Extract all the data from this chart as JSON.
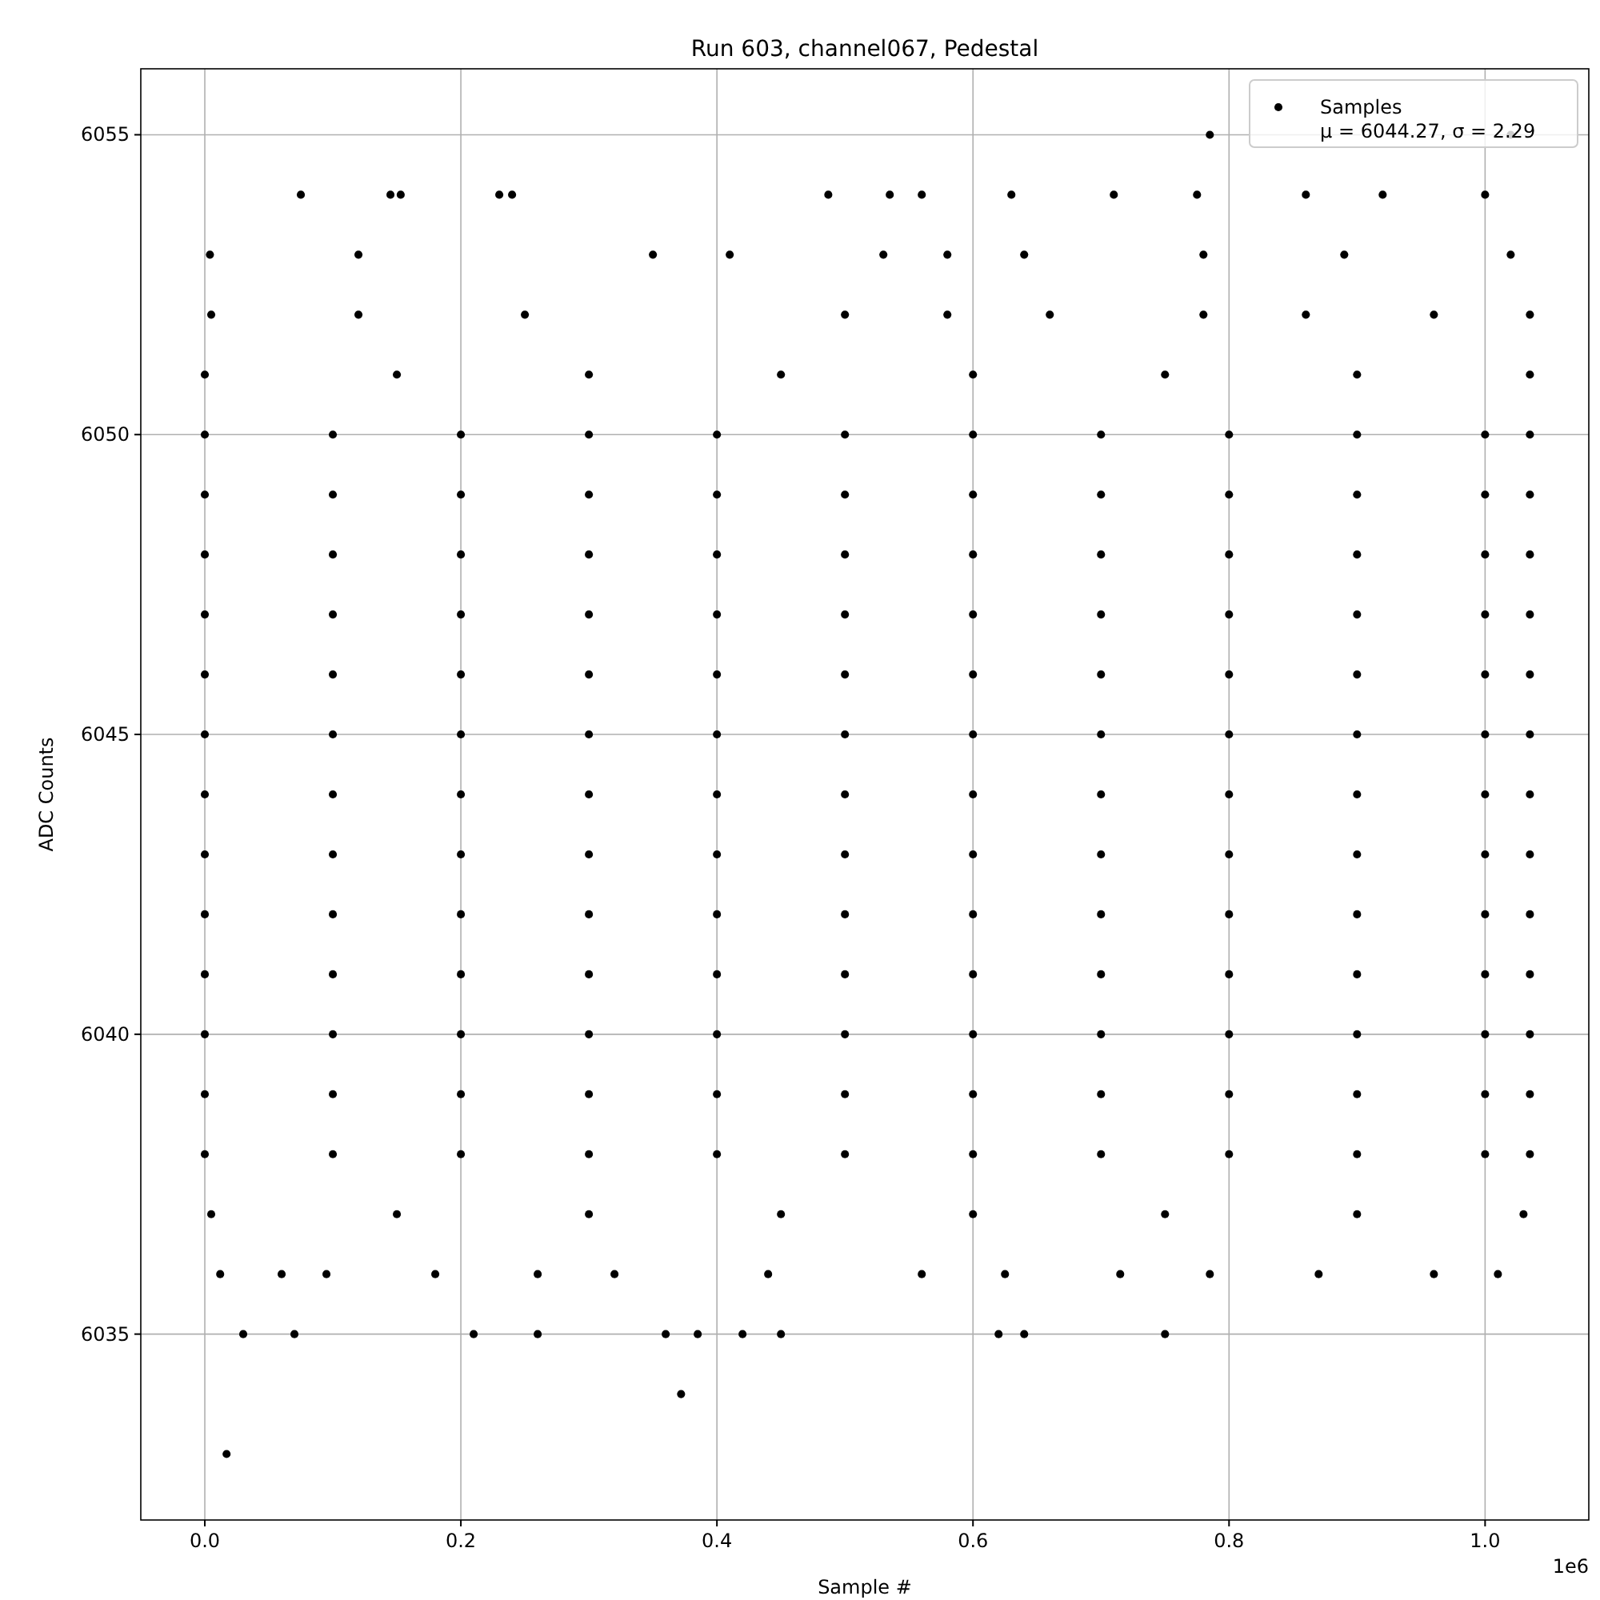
{
  "chart_data": {
    "type": "scatter",
    "title": "Run 603, channel067, Pedestal",
    "xlabel": "Sample #",
    "ylabel": "ADC Counts",
    "xlim": [
      -0.05,
      1.081
    ],
    "ylim": [
      6031.9,
      6056.1
    ],
    "xticks": [
      {
        "value": 0,
        "label": "0.0"
      },
      0.2,
      0.4,
      0.6,
      0.8,
      {
        "value": 1,
        "label": "1.0"
      }
    ],
    "yticks": [
      6035,
      6040,
      6045,
      6050,
      6055
    ],
    "grid": true,
    "legend": "top right",
    "marker": "circle",
    "annotations": [
      "1e6"
    ],
    "series": [
      {
        "name": "Samples\nμ = 6044.27, σ = 2.29",
        "color": "#000000",
        "x": [
          0,
          0.1,
          0.2,
          0.3,
          0.4,
          0.5,
          0.6,
          0.7,
          0.8,
          0.9,
          1,
          1.035,
          0,
          0.1,
          0.2,
          0.3,
          0.4,
          0.5,
          0.6,
          0.7,
          0.8,
          0.9,
          1,
          1.035,
          0,
          0.1,
          0.2,
          0.3,
          0.4,
          0.5,
          0.6,
          0.7,
          0.8,
          0.9,
          1,
          1.035,
          0,
          0.1,
          0.2,
          0.3,
          0.4,
          0.5,
          0.6,
          0.7,
          0.8,
          0.9,
          1,
          1.035,
          0,
          0.1,
          0.2,
          0.3,
          0.4,
          0.5,
          0.6,
          0.7,
          0.8,
          0.9,
          1,
          1.035,
          0,
          0.1,
          0.2,
          0.3,
          0.4,
          0.5,
          0.6,
          0.7,
          0.8,
          0.9,
          1,
          1.035,
          0,
          0.1,
          0.2,
          0.3,
          0.4,
          0.5,
          0.6,
          0.7,
          0.8,
          0.9,
          1,
          1.035,
          0,
          0.1,
          0.2,
          0.3,
          0.4,
          0.5,
          0.6,
          0.7,
          0.8,
          0.9,
          1,
          1.035,
          0,
          0.1,
          0.2,
          0.3,
          0.4,
          0.5,
          0.6,
          0.7,
          0.8,
          0.9,
          1,
          1.035,
          0,
          0.1,
          0.2,
          0.3,
          0.4,
          0.5,
          0.6,
          0.7,
          0.8,
          0.9,
          1,
          1.035,
          0,
          0.1,
          0.2,
          0.3,
          0.4,
          0.5,
          0.6,
          0.7,
          0.8,
          0.9,
          1,
          1.035,
          0,
          0.1,
          0.2,
          0.3,
          0.4,
          0.5,
          0.6,
          0.7,
          0.8,
          0.9,
          1,
          1.035,
          0,
          0.1,
          0.2,
          0.3,
          0.4,
          0.5,
          0.6,
          0.7,
          0.8,
          0.9,
          1,
          1.035,
          0,
          0.15,
          0.3,
          0.45,
          0.6,
          0.75,
          0.9,
          1.035,
          0.005,
          0.15,
          0.3,
          0.45,
          0.6,
          0.75,
          0.9,
          1.03,
          0.005,
          0.12,
          0.25,
          0.5,
          0.58,
          0.66,
          0.78,
          0.86,
          0.96,
          1.035,
          0.004,
          0.12,
          0.35,
          0.41,
          0.53,
          0.58,
          0.64,
          0.78,
          0.89,
          1.02,
          0.075,
          0.145,
          0.153,
          0.23,
          0.24,
          0.487,
          0.535,
          0.56,
          0.63,
          0.71,
          0.775,
          0.86,
          0.92,
          1,
          0.785,
          1.02,
          0.012,
          0.06,
          0.095,
          0.18,
          0.26,
          0.32,
          0.44,
          0.56,
          0.625,
          0.715,
          0.785,
          0.87,
          0.96,
          1.01,
          0.03,
          0.07,
          0.21,
          0.26,
          0.36,
          0.385,
          0.42,
          0.45,
          0.62,
          0.64,
          0.75,
          0.372,
          0.017
        ],
        "values": [
          6038,
          6038,
          6038,
          6038,
          6038,
          6038,
          6038,
          6038,
          6038,
          6038,
          6038,
          6038,
          6039,
          6039,
          6039,
          6039,
          6039,
          6039,
          6039,
          6039,
          6039,
          6039,
          6039,
          6039,
          6040,
          6040,
          6040,
          6040,
          6040,
          6040,
          6040,
          6040,
          6040,
          6040,
          6040,
          6040,
          6041,
          6041,
          6041,
          6041,
          6041,
          6041,
          6041,
          6041,
          6041,
          6041,
          6041,
          6041,
          6042,
          6042,
          6042,
          6042,
          6042,
          6042,
          6042,
          6042,
          6042,
          6042,
          6042,
          6042,
          6043,
          6043,
          6043,
          6043,
          6043,
          6043,
          6043,
          6043,
          6043,
          6043,
          6043,
          6043,
          6044,
          6044,
          6044,
          6044,
          6044,
          6044,
          6044,
          6044,
          6044,
          6044,
          6044,
          6044,
          6045,
          6045,
          6045,
          6045,
          6045,
          6045,
          6045,
          6045,
          6045,
          6045,
          6045,
          6045,
          6046,
          6046,
          6046,
          6046,
          6046,
          6046,
          6046,
          6046,
          6046,
          6046,
          6046,
          6046,
          6047,
          6047,
          6047,
          6047,
          6047,
          6047,
          6047,
          6047,
          6047,
          6047,
          6047,
          6047,
          6048,
          6048,
          6048,
          6048,
          6048,
          6048,
          6048,
          6048,
          6048,
          6048,
          6048,
          6048,
          6049,
          6049,
          6049,
          6049,
          6049,
          6049,
          6049,
          6049,
          6049,
          6049,
          6049,
          6049,
          6050,
          6050,
          6050,
          6050,
          6050,
          6050,
          6050,
          6050,
          6050,
          6050,
          6050,
          6050,
          6051,
          6051,
          6051,
          6051,
          6051,
          6051,
          6051,
          6051,
          6037,
          6037,
          6037,
          6037,
          6037,
          6037,
          6037,
          6037,
          6052,
          6052,
          6052,
          6052,
          6052,
          6052,
          6052,
          6052,
          6052,
          6052,
          6053,
          6053,
          6053,
          6053,
          6053,
          6053,
          6053,
          6053,
          6053,
          6053,
          6054,
          6054,
          6054,
          6054,
          6054,
          6054,
          6054,
          6054,
          6054,
          6054,
          6054,
          6054,
          6054,
          6054,
          6055,
          6055,
          6036,
          6036,
          6036,
          6036,
          6036,
          6036,
          6036,
          6036,
          6036,
          6036,
          6036,
          6036,
          6036,
          6036,
          6035,
          6035,
          6035,
          6035,
          6035,
          6035,
          6035,
          6035,
          6035,
          6035,
          6035,
          6034,
          6033
        ]
      }
    ]
  }
}
